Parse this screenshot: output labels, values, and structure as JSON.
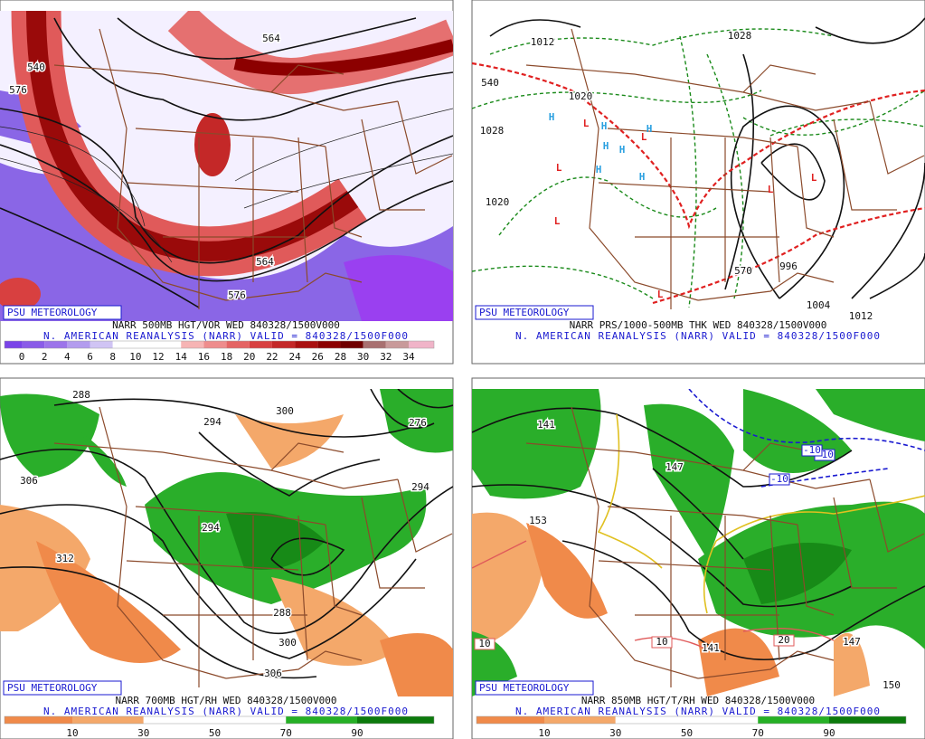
{
  "panels": [
    {
      "watermark": "PSU METEOROLOGY",
      "title": "NARR 500MB HGT/VOR WED 840328/1500V000",
      "subtitle": "N. AMERICAN REANALYSIS (NARR) VALID = 840328/1500F000",
      "colorbar": {
        "labels": [
          0,
          2,
          4,
          6,
          8,
          10,
          12,
          14,
          16,
          18,
          20,
          22,
          24,
          26,
          28,
          30,
          32,
          34
        ],
        "colors": [
          "#7a44e8",
          "#8a5ce8",
          "#9c74ea",
          "#b39cee",
          "#d0c4f4",
          "#ffffff",
          "#ffffff",
          "#ffffff",
          "#f6b4b4",
          "#ee8c8c",
          "#e46464",
          "#d84040",
          "#c42828",
          "#aa1010",
          "#8c0000",
          "#700000",
          "#a87070",
          "#c89a9a",
          "#f0b4c8"
        ]
      },
      "contour_labels": [
        "564",
        "540",
        "564",
        "576",
        "576"
      ],
      "symbols": []
    },
    {
      "watermark": "PSU METEOROLOGY",
      "title": "NARR PRS/1000-500MB THK WED 840328/1500V000",
      "subtitle": "N. AMERICAN REANALYSIS (NARR) VALID = 840328/1500F000",
      "contour_labels": [
        "1012",
        "1028",
        "1020",
        "1020",
        "1028",
        "996",
        "1004",
        "1012",
        "540",
        "570"
      ],
      "symbols": [
        {
          "text": "H",
          "color": "#2aa0e0"
        },
        {
          "text": "H",
          "color": "#2aa0e0"
        },
        {
          "text": "H",
          "color": "#2aa0e0"
        },
        {
          "text": "H",
          "color": "#2aa0e0"
        },
        {
          "text": "H",
          "color": "#2aa0e0"
        },
        {
          "text": "H",
          "color": "#2aa0e0"
        },
        {
          "text": "H",
          "color": "#2aa0e0"
        },
        {
          "text": "L",
          "color": "#e02020"
        },
        {
          "text": "L",
          "color": "#e02020"
        },
        {
          "text": "L",
          "color": "#e02020"
        },
        {
          "text": "L",
          "color": "#e02020"
        },
        {
          "text": "L",
          "color": "#e02020"
        },
        {
          "text": "L",
          "color": "#e02020"
        },
        {
          "text": "L",
          "color": "#e02020"
        }
      ]
    },
    {
      "watermark": "PSU METEOROLOGY",
      "title": "NARR 700MB HGT/RH WED 840328/1500V000",
      "subtitle": "N. AMERICAN REANALYSIS (NARR) VALID = 840328/1500F000",
      "colorbar": {
        "labels": [
          10,
          30,
          50,
          70,
          90
        ],
        "colors": [
          "#f08a4a",
          "#f4a86a",
          "#ffffff",
          "#ffffff",
          "#26b026",
          "#0c7a0c"
        ]
      },
      "contour_labels": [
        "288",
        "300",
        "294",
        "306",
        "312",
        "294",
        "288",
        "300",
        "306",
        "294",
        "276"
      ],
      "symbols": []
    },
    {
      "watermark": "PSU METEOROLOGY",
      "title": "NARR 850MB HGT/T/RH WED 840328/1500V000",
      "subtitle": "N. AMERICAN REANALYSIS (NARR) VALID = 840328/1500F000",
      "colorbar": {
        "labels": [
          10,
          30,
          50,
          70,
          90
        ],
        "colors": [
          "#f08a4a",
          "#f4a86a",
          "#ffffff",
          "#ffffff",
          "#26b026",
          "#0c7a0c"
        ]
      },
      "contour_labels": [
        "141",
        "153",
        "147",
        "-10",
        "-10",
        "-10",
        "141",
        "147",
        "150",
        "10",
        "10",
        "20"
      ],
      "symbols": []
    }
  ]
}
